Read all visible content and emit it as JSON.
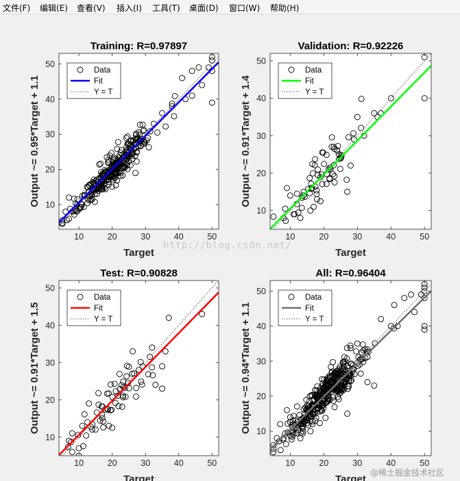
{
  "menu": {
    "items": [
      "文件(F)",
      "编辑(E)",
      "查看(V)",
      "插入(I)",
      "工具(T)",
      "桌面(D)",
      "窗口(W)",
      "帮助(H)"
    ]
  },
  "watermark": "http://blog.csdn.net/",
  "credit": "@稀土掘金技术社区",
  "chart_data": [
    {
      "type": "scatter",
      "title": "Training: R=0.97897",
      "xlabel": "Target",
      "ylabel": "Output ~= 0.95*Target + 1.1",
      "xlim": [
        4,
        52
      ],
      "ylim": [
        3,
        53
      ],
      "xticks": [
        10,
        20,
        30,
        40,
        50
      ],
      "yticks": [
        10,
        20,
        30,
        40,
        50
      ],
      "fit": {
        "slope": 0.95,
        "intercept": 1.1,
        "color": "#0000ff"
      },
      "legend": [
        "Data",
        "Fit",
        "Y = T"
      ],
      "legend_position": "top-left",
      "n_points": 300,
      "seed": 11,
      "noise": 1.8,
      "points": [
        [
          5,
          4.5
        ],
        [
          5,
          5.5
        ],
        [
          6,
          8
        ],
        [
          7,
          12
        ],
        [
          8,
          8
        ],
        [
          9,
          8.5
        ],
        [
          41,
          46
        ],
        [
          42,
          40
        ],
        [
          44,
          48
        ],
        [
          46,
          49
        ],
        [
          47,
          44
        ],
        [
          49,
          49
        ],
        [
          50,
          51
        ],
        [
          50,
          52
        ],
        [
          50,
          39
        ],
        [
          50,
          48
        ],
        [
          44,
          41
        ],
        [
          38,
          38
        ],
        [
          35,
          36
        ],
        [
          27,
          19
        ]
      ]
    },
    {
      "type": "scatter",
      "title": "Validation: R=0.92226",
      "xlabel": "Target",
      "ylabel": "Output ~= 0.91*Target + 1.4",
      "xlim": [
        4,
        52
      ],
      "ylim": [
        5,
        52
      ],
      "xticks": [
        10,
        20,
        30,
        40,
        50
      ],
      "yticks": [
        10,
        20,
        30,
        40,
        50
      ],
      "fit": {
        "slope": 0.91,
        "intercept": 1.4,
        "color": "#00ff00"
      },
      "legend": [
        "Data",
        "Fit",
        "Y = T"
      ],
      "legend_position": "top-left",
      "n_points": 60,
      "seed": 23,
      "noise": 2.5,
      "points": [
        [
          8,
          8
        ],
        [
          9,
          16
        ],
        [
          10,
          14
        ],
        [
          11,
          9
        ],
        [
          12,
          14.5
        ],
        [
          13,
          8
        ],
        [
          14,
          15
        ],
        [
          16,
          10
        ],
        [
          17,
          11
        ],
        [
          18,
          13
        ],
        [
          19,
          12.5
        ],
        [
          27,
          15
        ],
        [
          29,
          29
        ],
        [
          30,
          35
        ],
        [
          32,
          30
        ],
        [
          35,
          36
        ],
        [
          36,
          35
        ],
        [
          37,
          36
        ],
        [
          40,
          40
        ],
        [
          50,
          51
        ],
        [
          50,
          40
        ],
        [
          24,
          26
        ],
        [
          22,
          21
        ],
        [
          28,
          22
        ]
      ]
    },
    {
      "type": "scatter",
      "title": "Test: R=0.90828",
      "xlabel": "Target",
      "ylabel": "Output ~= 0.91*Target + 1.5",
      "xlim": [
        4,
        52
      ],
      "ylim": [
        5,
        52
      ],
      "xticks": [
        10,
        20,
        30,
        40,
        50
      ],
      "yticks": [
        10,
        20,
        30,
        40,
        50
      ],
      "fit": {
        "slope": 0.91,
        "intercept": 1.5,
        "color": "#ff0000"
      },
      "legend": [
        "Data",
        "Fit",
        "Y = T"
      ],
      "legend_position": "top-left",
      "n_points": 60,
      "seed": 37,
      "noise": 2.4,
      "points": [
        [
          7,
          9
        ],
        [
          8,
          6
        ],
        [
          8,
          11
        ],
        [
          10,
          7
        ],
        [
          10,
          5
        ],
        [
          11,
          13
        ],
        [
          13,
          19
        ],
        [
          14,
          12
        ],
        [
          15,
          12
        ],
        [
          19,
          13
        ],
        [
          20,
          12.5
        ],
        [
          28,
          28
        ],
        [
          32,
          34
        ],
        [
          33,
          24
        ],
        [
          35,
          23
        ],
        [
          35,
          29
        ],
        [
          36,
          33
        ],
        [
          37,
          42
        ],
        [
          47,
          43
        ],
        [
          26,
          27
        ]
      ]
    },
    {
      "type": "scatter",
      "title": "All: R=0.96404",
      "xlabel": "Target",
      "ylabel": "Output ~= 0.94*Target + 1.1",
      "xlim": [
        4,
        52
      ],
      "ylim": [
        3,
        53
      ],
      "xticks": [
        10,
        20,
        30,
        40,
        50
      ],
      "yticks": [
        10,
        20,
        30,
        40,
        50
      ],
      "fit": {
        "slope": 0.94,
        "intercept": 1.1,
        "color": "#707070"
      },
      "legend": [
        "Data",
        "Fit",
        "Y = T"
      ],
      "legend_position": "top-left",
      "n_points": 380,
      "seed": 53,
      "noise": 2.3,
      "points": [
        [
          5,
          5
        ],
        [
          5,
          6
        ],
        [
          6,
          8
        ],
        [
          7,
          12
        ],
        [
          8,
          8
        ],
        [
          9,
          16
        ],
        [
          10,
          14
        ],
        [
          11,
          9
        ],
        [
          13,
          8
        ],
        [
          16,
          10
        ],
        [
          27,
          15
        ],
        [
          50,
          51
        ],
        [
          50,
          52
        ],
        [
          50,
          50
        ],
        [
          50,
          48
        ],
        [
          50,
          40
        ],
        [
          50,
          39
        ],
        [
          49,
          49
        ],
        [
          47,
          44
        ],
        [
          46,
          49
        ],
        [
          44,
          48
        ],
        [
          42,
          40
        ],
        [
          41,
          46
        ],
        [
          40,
          40
        ],
        [
          37,
          42
        ],
        [
          35,
          23
        ],
        [
          33,
          24
        ],
        [
          30,
          35
        ]
      ]
    }
  ]
}
